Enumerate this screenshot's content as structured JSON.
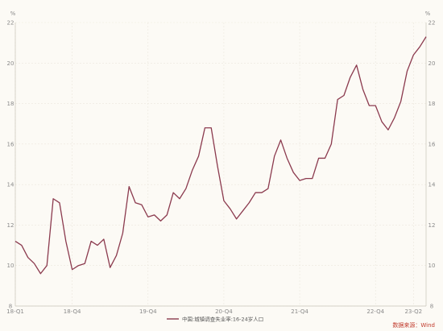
{
  "chart_data": {
    "type": "line",
    "title": "",
    "left_unit": "%",
    "right_unit": "%",
    "ylim": [
      8,
      22
    ],
    "yticks": [
      8,
      10,
      12,
      14,
      16,
      18,
      20,
      22
    ],
    "x_tick_labels": [
      {
        "label": "18-Q1",
        "index": 0
      },
      {
        "label": "18-Q4",
        "index": 9
      },
      {
        "label": "19-Q4",
        "index": 21
      },
      {
        "label": "20-Q4",
        "index": 33
      },
      {
        "label": "21-Q4",
        "index": 45
      },
      {
        "label": "22-Q4",
        "index": 57
      },
      {
        "label": "23-Q2",
        "index": 63
      }
    ],
    "grid": true,
    "legend_position": "bottom-center",
    "series": [
      {
        "name": "中国:城镇调查失业率:16-24岁人口",
        "color": "#8b3a4e",
        "values": [
          11.2,
          11.0,
          10.4,
          10.1,
          9.6,
          10.0,
          13.3,
          13.1,
          11.2,
          9.8,
          10.0,
          10.1,
          11.2,
          11.0,
          11.3,
          9.9,
          10.5,
          11.6,
          13.9,
          13.1,
          13.0,
          12.4,
          12.5,
          12.2,
          12.5,
          13.6,
          13.3,
          13.8,
          14.7,
          15.4,
          16.8,
          16.8,
          14.9,
          13.2,
          12.8,
          12.3,
          12.7,
          13.1,
          13.6,
          13.6,
          13.8,
          15.4,
          16.2,
          15.3,
          14.6,
          14.2,
          14.3,
          14.3,
          15.3,
          15.3,
          16.0,
          18.2,
          18.4,
          19.3,
          19.9,
          18.7,
          17.9,
          17.9,
          17.1,
          16.7,
          17.3,
          18.1,
          19.6,
          20.4,
          20.8,
          21.3
        ]
      }
    ],
    "source_text": "数据来源：Wind"
  }
}
